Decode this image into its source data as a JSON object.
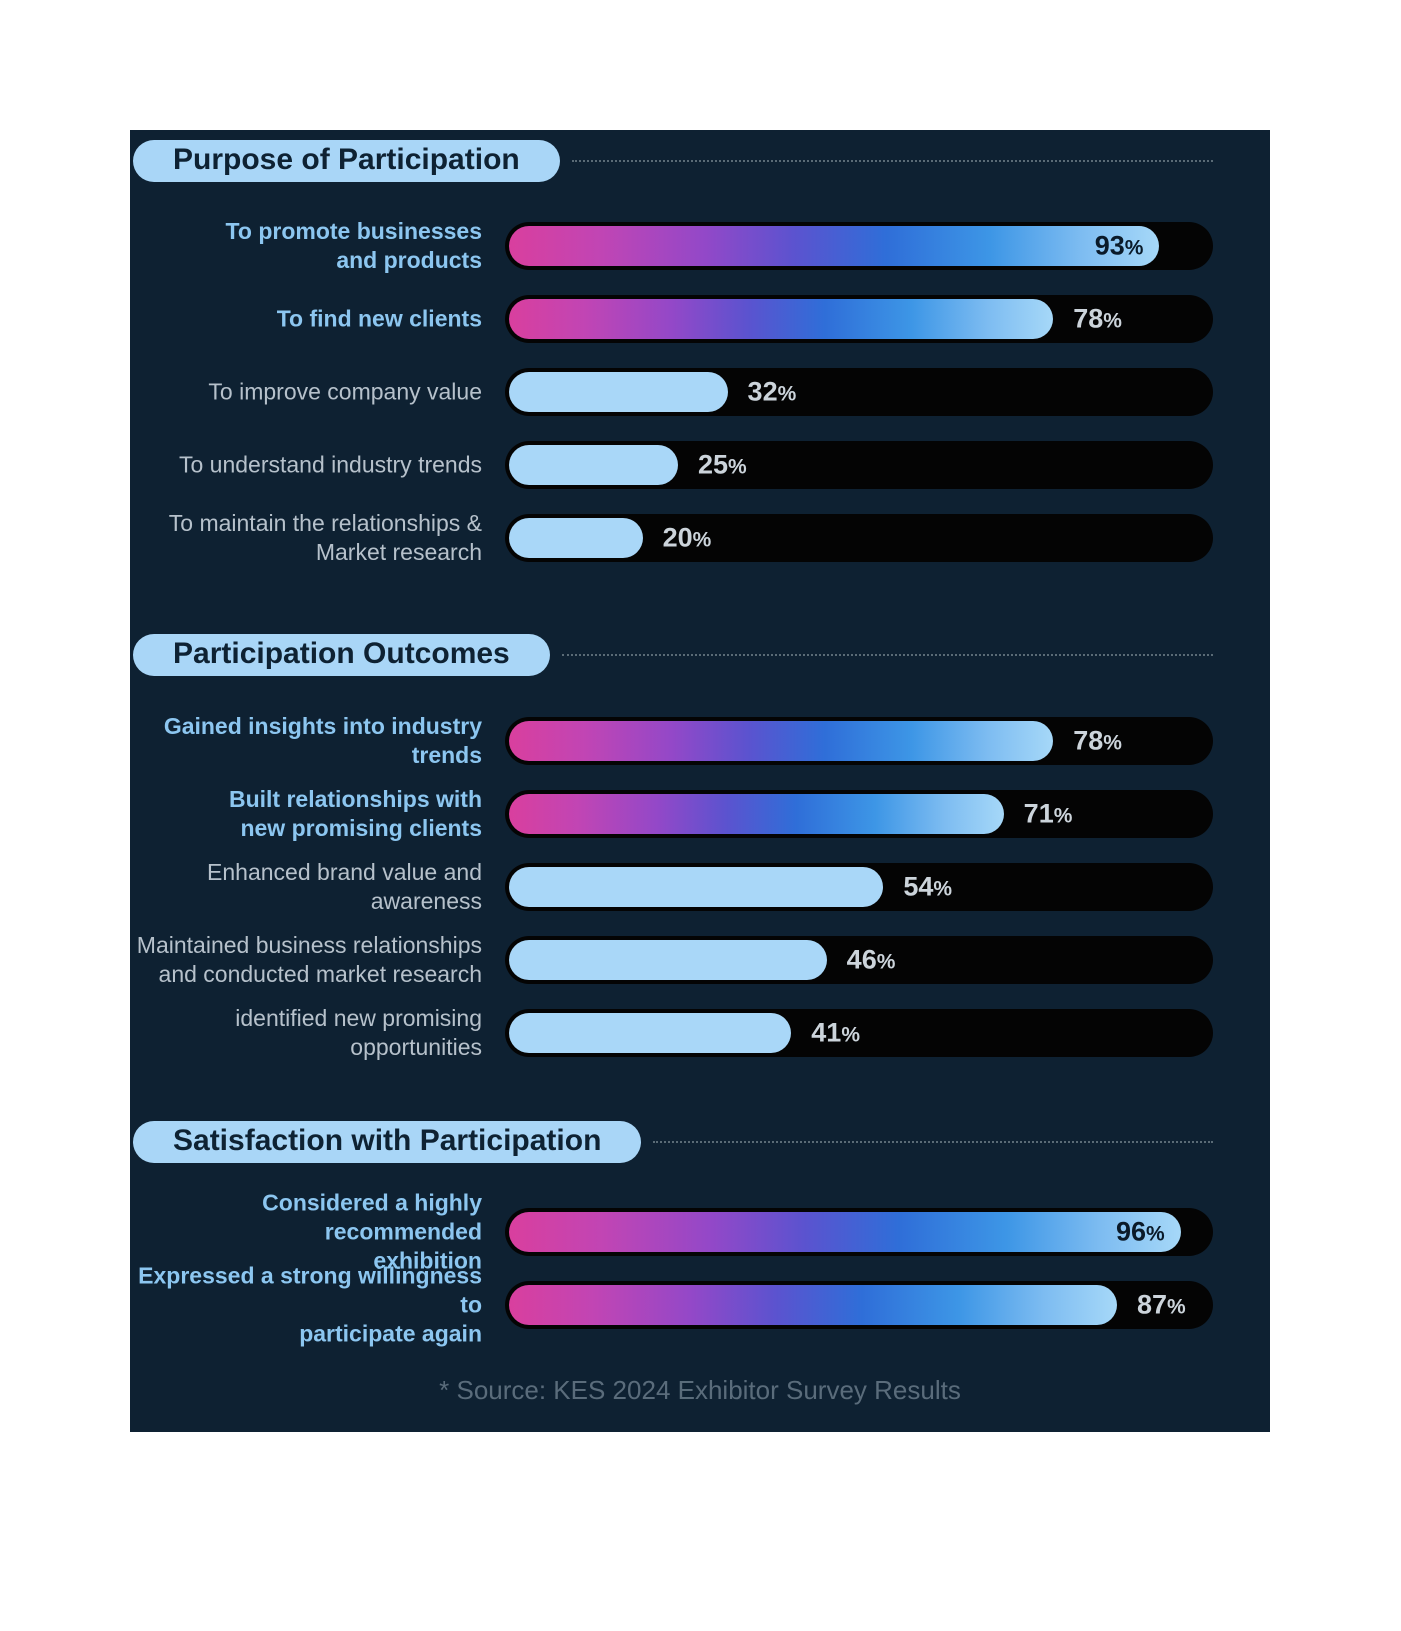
{
  "source_note": "* Source: KES 2024 Exhibitor Survey Results",
  "colors": {
    "page_bg": "#ffffff",
    "panel_bg": "#0e2132",
    "track": "#040404",
    "solid_fill": "#a9d7f8",
    "gradient_stops": [
      "#d93f9e",
      "#9348c8",
      "#2f6ed8",
      "#a6d8f8"
    ],
    "header_pill_bg": "#a9d6f7",
    "header_text": "#0e2233",
    "label_emphasis": "#8cc6f0",
    "label_normal": "#b6c1cb",
    "pct_inside": "#0a1a29",
    "pct_outside": "#ccd4db",
    "dotted_line": "#5a6b76",
    "source_text": "#5a6c7b"
  },
  "chart_data": [
    {
      "type": "bar",
      "orientation": "horizontal",
      "title": "Purpose of Participation",
      "xlim": [
        0,
        100
      ],
      "value_suffix": "%",
      "bars": [
        {
          "label": "To promote businesses and products",
          "label_lines": [
            "To promote businesses",
            "and products"
          ],
          "value": 93,
          "fill": "gradient",
          "emphasis": true,
          "pct_inside": true
        },
        {
          "label": "To find new clients",
          "label_lines": [
            "To find new clients"
          ],
          "value": 78,
          "fill": "gradient",
          "emphasis": true,
          "pct_inside": false
        },
        {
          "label": "To improve company value",
          "label_lines": [
            "To improve company value"
          ],
          "value": 32,
          "fill": "solid",
          "emphasis": false,
          "pct_inside": false
        },
        {
          "label": "To understand industry trends",
          "label_lines": [
            "To understand industry trends"
          ],
          "value": 25,
          "fill": "solid",
          "emphasis": false,
          "pct_inside": false
        },
        {
          "label": "To maintain the relationships & Market research",
          "label_lines": [
            "To maintain the relationships &",
            "Market research"
          ],
          "value": 20,
          "fill": "solid",
          "emphasis": false,
          "pct_inside": false
        }
      ]
    },
    {
      "type": "bar",
      "orientation": "horizontal",
      "title": "Participation Outcomes",
      "xlim": [
        0,
        100
      ],
      "value_suffix": "%",
      "bars": [
        {
          "label": "Gained insights into industry trends",
          "label_lines": [
            "Gained insights into industry",
            "trends"
          ],
          "value": 78,
          "fill": "gradient",
          "emphasis": true,
          "pct_inside": false
        },
        {
          "label": "Built relationships with new promising clients",
          "label_lines": [
            "Built relationships with",
            "new promising clients"
          ],
          "value": 71,
          "fill": "gradient",
          "emphasis": true,
          "pct_inside": false
        },
        {
          "label": "Enhanced brand value and awareness",
          "label_lines": [
            "Enhanced brand value and",
            "awareness"
          ],
          "value": 54,
          "fill": "solid",
          "emphasis": false,
          "pct_inside": false
        },
        {
          "label": "Maintained business relationships and conducted market research",
          "label_lines": [
            "Maintained business relationships",
            "and conducted market research"
          ],
          "value": 46,
          "fill": "solid",
          "emphasis": false,
          "pct_inside": false
        },
        {
          "label": "identified new promising opportunities",
          "label_lines": [
            "identified new promising",
            "opportunities"
          ],
          "value": 41,
          "fill": "solid",
          "emphasis": false,
          "pct_inside": false
        }
      ]
    },
    {
      "type": "bar",
      "orientation": "horizontal",
      "title": "Satisfaction with Participation",
      "xlim": [
        0,
        100
      ],
      "value_suffix": "%",
      "bars": [
        {
          "label": "Considered a highly recommended exhibition",
          "label_lines": [
            "Considered a highly recommended",
            "exhibition"
          ],
          "value": 96,
          "fill": "gradient",
          "emphasis": true,
          "pct_inside": true
        },
        {
          "label": "Expressed a strong willingness to participate again",
          "label_lines": [
            "Expressed a strong willingness to",
            "participate again"
          ],
          "value": 87,
          "fill": "gradient",
          "emphasis": true,
          "pct_inside": false
        }
      ]
    }
  ]
}
